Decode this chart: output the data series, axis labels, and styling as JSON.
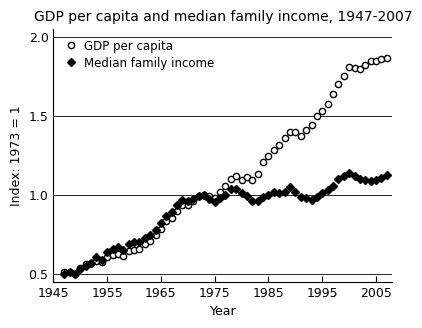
{
  "title": "GDP per capita and median family income, 1947-2007",
  "xlabel": "Year",
  "ylabel": "Index: 1973 = 1",
  "xlim": [
    1945,
    2008
  ],
  "ylim": [
    0.45,
    2.05
  ],
  "yticks": [
    0.5,
    1.0,
    1.5,
    2.0
  ],
  "xticks": [
    1945,
    1955,
    1965,
    1975,
    1985,
    1995,
    2005
  ],
  "gdp_years": [
    1947,
    1948,
    1949,
    1950,
    1951,
    1952,
    1953,
    1954,
    1955,
    1956,
    1957,
    1958,
    1959,
    1960,
    1961,
    1962,
    1963,
    1964,
    1965,
    1966,
    1967,
    1968,
    1969,
    1970,
    1971,
    1972,
    1973,
    1974,
    1975,
    1976,
    1977,
    1978,
    1979,
    1980,
    1981,
    1982,
    1983,
    1984,
    1985,
    1986,
    1987,
    1988,
    1989,
    1990,
    1991,
    1992,
    1993,
    1994,
    1995,
    1996,
    1997,
    1998,
    1999,
    2000,
    2001,
    2002,
    2003,
    2004,
    2005,
    2006,
    2007
  ],
  "gdp_values": [
    0.51,
    0.508,
    0.5,
    0.535,
    0.562,
    0.57,
    0.582,
    0.572,
    0.608,
    0.618,
    0.622,
    0.612,
    0.642,
    0.65,
    0.655,
    0.688,
    0.71,
    0.744,
    0.784,
    0.832,
    0.854,
    0.9,
    0.935,
    0.938,
    0.96,
    0.99,
    1.0,
    0.992,
    0.98,
    1.02,
    1.058,
    1.1,
    1.12,
    1.095,
    1.115,
    1.095,
    1.13,
    1.21,
    1.248,
    1.285,
    1.315,
    1.36,
    1.395,
    1.395,
    1.375,
    1.41,
    1.44,
    1.5,
    1.528,
    1.575,
    1.64,
    1.7,
    1.755,
    1.81,
    1.8,
    1.795,
    1.82,
    1.845,
    1.85,
    1.86,
    1.865
  ],
  "mfi_years": [
    1947,
    1948,
    1949,
    1950,
    1951,
    1952,
    1953,
    1954,
    1955,
    1956,
    1957,
    1958,
    1959,
    1960,
    1961,
    1962,
    1963,
    1964,
    1965,
    1966,
    1967,
    1968,
    1969,
    1970,
    1971,
    1972,
    1973,
    1974,
    1975,
    1976,
    1977,
    1978,
    1979,
    1980,
    1981,
    1982,
    1983,
    1984,
    1985,
    1986,
    1987,
    1988,
    1989,
    1990,
    1991,
    1992,
    1993,
    1994,
    1995,
    1996,
    1997,
    1998,
    1999,
    2000,
    2001,
    2002,
    2003,
    2004,
    2005,
    2006,
    2007
  ],
  "mfi_values": [
    0.5,
    0.508,
    0.498,
    0.528,
    0.548,
    0.568,
    0.608,
    0.588,
    0.638,
    0.658,
    0.668,
    0.648,
    0.688,
    0.698,
    0.703,
    0.728,
    0.748,
    0.778,
    0.818,
    0.868,
    0.888,
    0.938,
    0.968,
    0.958,
    0.973,
    0.993,
    1.0,
    0.973,
    0.953,
    0.978,
    0.998,
    1.038,
    1.038,
    1.008,
    0.993,
    0.958,
    0.958,
    0.988,
    0.998,
    1.018,
    1.008,
    1.018,
    1.048,
    1.018,
    0.988,
    0.978,
    0.968,
    0.988,
    1.008,
    1.028,
    1.058,
    1.098,
    1.118,
    1.138,
    1.118,
    1.098,
    1.093,
    1.088,
    1.093,
    1.108,
    1.123
  ],
  "gdp_marker": "o",
  "mfi_marker": "D",
  "gdp_color": "#000000",
  "mfi_color": "#000000",
  "background_color": "#ffffff",
  "legend_gdp": "GDP per capita",
  "legend_mfi": "Median family income",
  "title_fontsize": 10,
  "label_fontsize": 9,
  "tick_fontsize": 9
}
